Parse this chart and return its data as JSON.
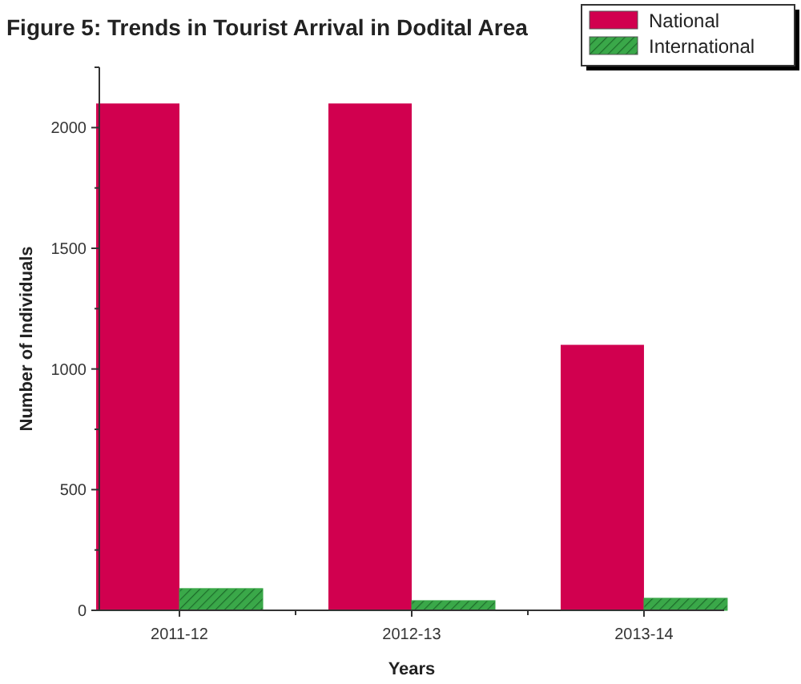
{
  "chart_data": {
    "type": "bar",
    "title": "Figure 5: Trends in Tourist Arrival in Dodital Area",
    "xlabel": "Years",
    "ylabel": "Number of Individuals",
    "categories": [
      "2011-12",
      "2012-13",
      "2013-14"
    ],
    "series": [
      {
        "name": "National",
        "color": "#d1004f",
        "values": [
          2100,
          2100,
          1100
        ]
      },
      {
        "name": "International",
        "color": "#3aa849",
        "values": [
          90,
          40,
          50
        ]
      }
    ],
    "ylim": [
      0,
      2250
    ],
    "yticks": [
      0,
      {
        "value": 250,
        "label": null
      },
      500,
      {
        "value": 750,
        "label": null
      },
      1000,
      {
        "value": 1250,
        "label": null
      },
      1500,
      {
        "value": 1750,
        "label": null
      },
      2000,
      {
        "value": 2250,
        "label": null
      }
    ],
    "legend": "top right",
    "grid": false
  }
}
